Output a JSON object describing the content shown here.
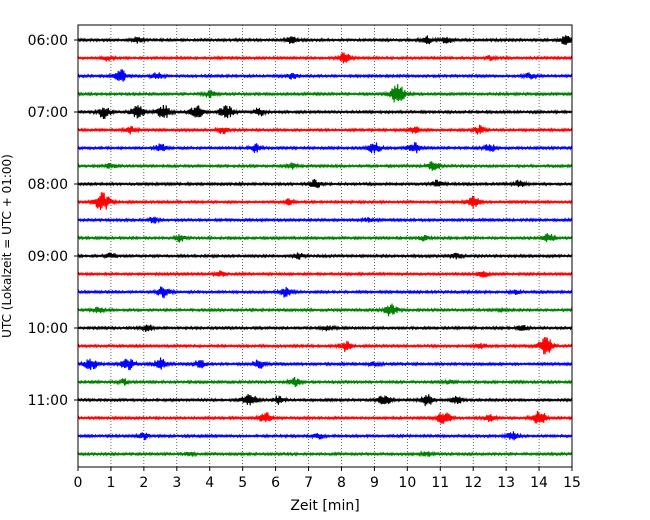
{
  "chart_data": {
    "type": "line",
    "title": "",
    "xlabel": "Zeit  [min]",
    "ylabel": "UTC (Lokalzeit = UTC + 01:00)",
    "xlim": [
      0,
      15
    ],
    "x_ticks": [
      0,
      1,
      2,
      3,
      4,
      5,
      6,
      7,
      8,
      9,
      10,
      11,
      12,
      13,
      14,
      15
    ],
    "x_tick_labels": [
      "0",
      "1",
      "2",
      "3",
      "4",
      "5",
      "6",
      "7",
      "8",
      "9",
      "10",
      "11",
      "12",
      "13",
      "14",
      "15"
    ],
    "y_tick_labels": [
      "06:00",
      "07:00",
      "08:00",
      "09:00",
      "10:00",
      "11:00"
    ],
    "vertical_grid": "dotted",
    "series_colors": [
      "#000000",
      "#ff0000",
      "#0000ff",
      "#008000"
    ],
    "rows": [
      {
        "start": "06:00",
        "color": "#000000",
        "bursts": [
          {
            "x": 1.8,
            "a": 0.4
          },
          {
            "x": 6.5,
            "a": 0.5
          },
          {
            "x": 10.6,
            "a": 0.6
          },
          {
            "x": 11.2,
            "a": 0.5
          },
          {
            "x": 14.8,
            "a": 0.6
          }
        ]
      },
      {
        "start": "06:15",
        "color": "#ff0000",
        "bursts": [
          {
            "x": 0.9,
            "a": 0.4
          },
          {
            "x": 8.1,
            "a": 0.7
          },
          {
            "x": 12.5,
            "a": 0.3
          }
        ]
      },
      {
        "start": "06:30",
        "color": "#0000ff",
        "bursts": [
          {
            "x": 1.3,
            "a": 0.9
          },
          {
            "x": 2.4,
            "a": 0.5
          },
          {
            "x": 6.5,
            "a": 0.4
          },
          {
            "x": 13.7,
            "a": 0.4
          }
        ]
      },
      {
        "start": "06:45",
        "color": "#008000",
        "bursts": [
          {
            "x": 4.0,
            "a": 0.5
          },
          {
            "x": 9.7,
            "a": 1.3
          }
        ]
      },
      {
        "start": "07:00",
        "color": "#000000",
        "bursts": [
          {
            "x": 0.8,
            "a": 0.9
          },
          {
            "x": 1.8,
            "a": 0.9
          },
          {
            "x": 2.6,
            "a": 1.0
          },
          {
            "x": 3.6,
            "a": 0.9
          },
          {
            "x": 4.5,
            "a": 1.0
          },
          {
            "x": 5.5,
            "a": 0.6
          }
        ]
      },
      {
        "start": "07:15",
        "color": "#ff0000",
        "bursts": [
          {
            "x": 1.6,
            "a": 0.5
          },
          {
            "x": 4.4,
            "a": 0.5
          },
          {
            "x": 10.2,
            "a": 0.5
          },
          {
            "x": 12.2,
            "a": 0.6
          }
        ]
      },
      {
        "start": "07:30",
        "color": "#0000ff",
        "bursts": [
          {
            "x": 2.5,
            "a": 0.6
          },
          {
            "x": 5.4,
            "a": 0.6
          },
          {
            "x": 9.0,
            "a": 0.8
          },
          {
            "x": 10.2,
            "a": 0.8
          },
          {
            "x": 12.5,
            "a": 0.6
          }
        ]
      },
      {
        "start": "07:45",
        "color": "#008000",
        "bursts": [
          {
            "x": 1.0,
            "a": 0.4
          },
          {
            "x": 6.5,
            "a": 0.4
          },
          {
            "x": 10.8,
            "a": 0.7
          }
        ]
      },
      {
        "start": "08:00",
        "color": "#000000",
        "bursts": [
          {
            "x": 7.2,
            "a": 0.6
          },
          {
            "x": 10.9,
            "a": 0.5
          },
          {
            "x": 13.4,
            "a": 0.5
          }
        ]
      },
      {
        "start": "08:15",
        "color": "#ff0000",
        "bursts": [
          {
            "x": 0.75,
            "a": 1.3
          },
          {
            "x": 6.4,
            "a": 0.4
          },
          {
            "x": 12.0,
            "a": 0.9
          }
        ]
      },
      {
        "start": "08:30",
        "color": "#0000ff",
        "bursts": [
          {
            "x": 2.3,
            "a": 0.4
          },
          {
            "x": 8.8,
            "a": 0.3
          }
        ]
      },
      {
        "start": "08:45",
        "color": "#008000",
        "bursts": [
          {
            "x": 3.1,
            "a": 0.5
          },
          {
            "x": 10.5,
            "a": 0.4
          },
          {
            "x": 14.3,
            "a": 0.6
          }
        ]
      },
      {
        "start": "09:00",
        "color": "#000000",
        "bursts": [
          {
            "x": 1.0,
            "a": 0.4
          },
          {
            "x": 6.7,
            "a": 0.4
          },
          {
            "x": 11.5,
            "a": 0.4
          }
        ]
      },
      {
        "start": "09:15",
        "color": "#ff0000",
        "bursts": [
          {
            "x": 4.3,
            "a": 0.4
          },
          {
            "x": 12.3,
            "a": 0.5
          }
        ]
      },
      {
        "start": "09:30",
        "color": "#0000ff",
        "bursts": [
          {
            "x": 2.6,
            "a": 0.8
          },
          {
            "x": 6.3,
            "a": 0.7
          },
          {
            "x": 13.3,
            "a": 0.3
          }
        ]
      },
      {
        "start": "09:45",
        "color": "#008000",
        "bursts": [
          {
            "x": 0.6,
            "a": 0.4
          },
          {
            "x": 9.5,
            "a": 0.9
          },
          {
            "x": 12.9,
            "a": 0.3
          }
        ]
      },
      {
        "start": "10:00",
        "color": "#000000",
        "bursts": [
          {
            "x": 2.1,
            "a": 0.5
          },
          {
            "x": 7.6,
            "a": 0.4
          },
          {
            "x": 13.5,
            "a": 0.4
          }
        ]
      },
      {
        "start": "10:15",
        "color": "#ff0000",
        "bursts": [
          {
            "x": 8.1,
            "a": 0.7
          },
          {
            "x": 12.2,
            "a": 0.4
          },
          {
            "x": 14.2,
            "a": 1.2
          }
        ]
      },
      {
        "start": "10:30",
        "color": "#0000ff",
        "bursts": [
          {
            "x": 0.4,
            "a": 0.9
          },
          {
            "x": 1.5,
            "a": 0.9
          },
          {
            "x": 2.5,
            "a": 0.8
          },
          {
            "x": 3.7,
            "a": 0.6
          },
          {
            "x": 5.5,
            "a": 0.6
          },
          {
            "x": 9.0,
            "a": 0.4
          }
        ]
      },
      {
        "start": "10:45",
        "color": "#008000",
        "bursts": [
          {
            "x": 1.4,
            "a": 0.4
          },
          {
            "x": 6.6,
            "a": 0.6
          },
          {
            "x": 11.3,
            "a": 0.3
          }
        ]
      },
      {
        "start": "11:00",
        "color": "#000000",
        "bursts": [
          {
            "x": 5.2,
            "a": 1.0
          },
          {
            "x": 6.1,
            "a": 0.6
          },
          {
            "x": 9.3,
            "a": 0.8
          },
          {
            "x": 10.6,
            "a": 0.8
          },
          {
            "x": 11.5,
            "a": 0.6
          }
        ]
      },
      {
        "start": "11:15",
        "color": "#ff0000",
        "bursts": [
          {
            "x": 5.7,
            "a": 0.8
          },
          {
            "x": 11.1,
            "a": 1.0
          },
          {
            "x": 12.5,
            "a": 0.5
          },
          {
            "x": 14.0,
            "a": 1.1
          }
        ]
      },
      {
        "start": "11:30",
        "color": "#0000ff",
        "bursts": [
          {
            "x": 2.0,
            "a": 0.5
          },
          {
            "x": 7.3,
            "a": 0.4
          },
          {
            "x": 13.2,
            "a": 0.6
          }
        ]
      },
      {
        "start": "11:45",
        "color": "#008000",
        "bursts": [
          {
            "x": 3.4,
            "a": 0.3
          },
          {
            "x": 10.6,
            "a": 0.3
          }
        ]
      }
    ]
  }
}
